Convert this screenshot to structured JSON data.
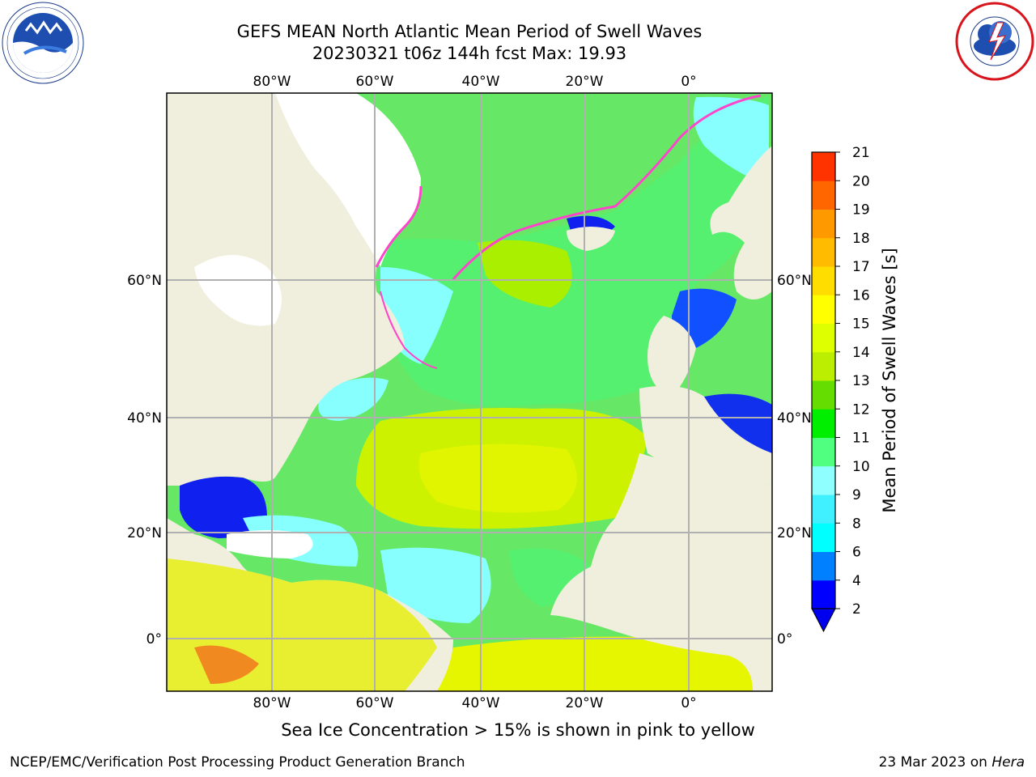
{
  "title_line1": "GEFS MEAN North Atlantic Mean Period of Swell Waves",
  "title_line2": "20230321 t06z 144h fcst   Max: 19.93",
  "map": {
    "lon_labels": [
      "80°W",
      "60°W",
      "40°W",
      "20°W",
      "0°"
    ],
    "lat_labels": [
      "60°N",
      "40°N",
      "20°N",
      "0°"
    ]
  },
  "colorbar": {
    "label": "Mean Period of Swell Waves [s]",
    "ticks": [
      "2",
      "4",
      "6",
      "8",
      "9",
      "10",
      "11",
      "12",
      "13",
      "14",
      "15",
      "16",
      "17",
      "18",
      "19",
      "20",
      "21"
    ],
    "colors": [
      "#0000ff",
      "#0080ff",
      "#00ffff",
      "#40f0ff",
      "#90ffff",
      "#50ff80",
      "#00ee00",
      "#66dd00",
      "#bbee00",
      "#ddff00",
      "#ffff00",
      "#ffdd00",
      "#ffbb00",
      "#ff9900",
      "#ff6600",
      "#ff3300"
    ]
  },
  "caption": "Sea Ice Concentration > 15% is shown in pink to yellow",
  "footer_left": "NCEP/EMC/Verification Post Processing Product Generation Branch",
  "footer_right_prefix": "23 Mar 2023 on ",
  "footer_right_host": "Hera",
  "logos": {
    "left": "noaa-logo",
    "right": "nws-logo"
  }
}
